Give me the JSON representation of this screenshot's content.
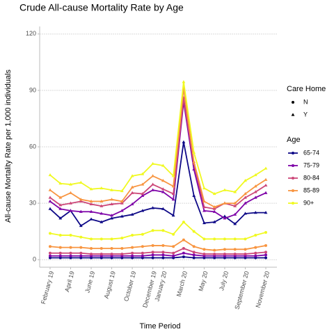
{
  "chart_data": {
    "type": "line",
    "title": "Crude All-cause Mortality Rate by Age",
    "x_label": "Time Period",
    "y_label": "All-cause Mortality Rate per 1,000 individuals",
    "categories": [
      "February 19",
      null,
      "April 19",
      null,
      "June 19",
      null,
      "August 19",
      null,
      "October 19",
      null,
      "December 19",
      "January 20",
      null,
      "March 20",
      null,
      "May 20",
      null,
      "July 20",
      null,
      "September 20",
      null,
      "November 20"
    ],
    "ylim": [
      -4,
      124
    ],
    "yticks": [
      0,
      30,
      60,
      90,
      120
    ],
    "grid": true,
    "legends": [
      {
        "title": "Care Home",
        "labels": [
          "N",
          "Y"
        ]
      },
      {
        "title": "Age",
        "labels": [
          "65-74",
          "75-79",
          "80-84",
          "85-89",
          "90+"
        ],
        "colors": [
          "#0d0887",
          "#7e03a8",
          "#cc4778",
          "#f89540",
          "#f0f921"
        ]
      }
    ],
    "series": [
      {
        "age": "65-74",
        "care_home": "N",
        "color": "#0d0887",
        "values": [
          1,
          1,
          1,
          1,
          1,
          1,
          1,
          1,
          1,
          1,
          1,
          1,
          1,
          1.5,
          1,
          1,
          1,
          1,
          1,
          1,
          1,
          1
        ]
      },
      {
        "age": "75-79",
        "care_home": "N",
        "color": "#7e03a8",
        "values": [
          2,
          2,
          2,
          2,
          2,
          2,
          2,
          2,
          2,
          2,
          2.5,
          2.5,
          2,
          3.5,
          2.5,
          2,
          2,
          2,
          2,
          2,
          2,
          2.5
        ]
      },
      {
        "age": "80-84",
        "care_home": "N",
        "color": "#cc4778",
        "values": [
          3.5,
          3.5,
          3.5,
          3.5,
          3,
          3,
          3,
          3,
          3.5,
          3.5,
          4,
          4,
          3.5,
          6,
          4,
          3,
          3,
          3,
          3,
          3,
          3.5,
          4
        ]
      },
      {
        "age": "85-89",
        "care_home": "N",
        "color": "#f89540",
        "values": [
          7,
          6.5,
          6.5,
          6.5,
          6,
          6,
          6,
          6,
          6.5,
          7,
          7.5,
          7.5,
          7,
          10.5,
          7,
          5.5,
          5,
          5.5,
          5.5,
          5.5,
          6.5,
          7.5
        ]
      },
      {
        "age": "90+",
        "care_home": "N",
        "color": "#f0f921",
        "values": [
          14,
          13,
          13,
          12,
          11,
          11,
          11,
          11.5,
          13,
          13.5,
          15.5,
          15.5,
          13.5,
          20,
          15,
          11,
          11,
          11,
          11,
          11,
          13,
          14.5
        ]
      },
      {
        "age": "65-74",
        "care_home": "Y",
        "color": "#0d0887",
        "values": [
          27,
          22,
          26,
          18,
          21.5,
          20,
          22,
          23,
          24,
          26,
          27.5,
          27,
          23.5,
          62.5,
          34,
          19.5,
          20,
          23,
          19,
          24.5,
          25,
          25
        ]
      },
      {
        "age": "75-79",
        "care_home": "Y",
        "color": "#7e03a8",
        "values": [
          31,
          27,
          26,
          25.5,
          25.5,
          24.5,
          23.5,
          26,
          29.5,
          34,
          37,
          36,
          32,
          84,
          48,
          26,
          25.5,
          22,
          24,
          30,
          33,
          35.5
        ]
      },
      {
        "age": "80-84",
        "care_home": "Y",
        "color": "#cc4778",
        "values": [
          33,
          29,
          30,
          31,
          29.5,
          28.5,
          29.5,
          30,
          35.5,
          35,
          40,
          37.5,
          35,
          86,
          51,
          28,
          27,
          30,
          28.5,
          33,
          36,
          39.5
        ]
      },
      {
        "age": "85-89",
        "care_home": "Y",
        "color": "#f89540",
        "values": [
          37,
          33,
          35.5,
          32,
          31,
          31,
          32,
          31,
          38.5,
          40,
          44.5,
          42,
          39,
          91,
          52,
          31,
          28,
          30,
          30,
          35,
          39,
          42.5
        ]
      },
      {
        "age": "90+",
        "care_home": "Y",
        "color": "#f0f921",
        "values": [
          45,
          40.5,
          40,
          41,
          37.5,
          38,
          37,
          36.5,
          44.5,
          45.5,
          51,
          50,
          44.5,
          94.5,
          57,
          38,
          35,
          37,
          36,
          42,
          45,
          48.5
        ]
      }
    ]
  }
}
